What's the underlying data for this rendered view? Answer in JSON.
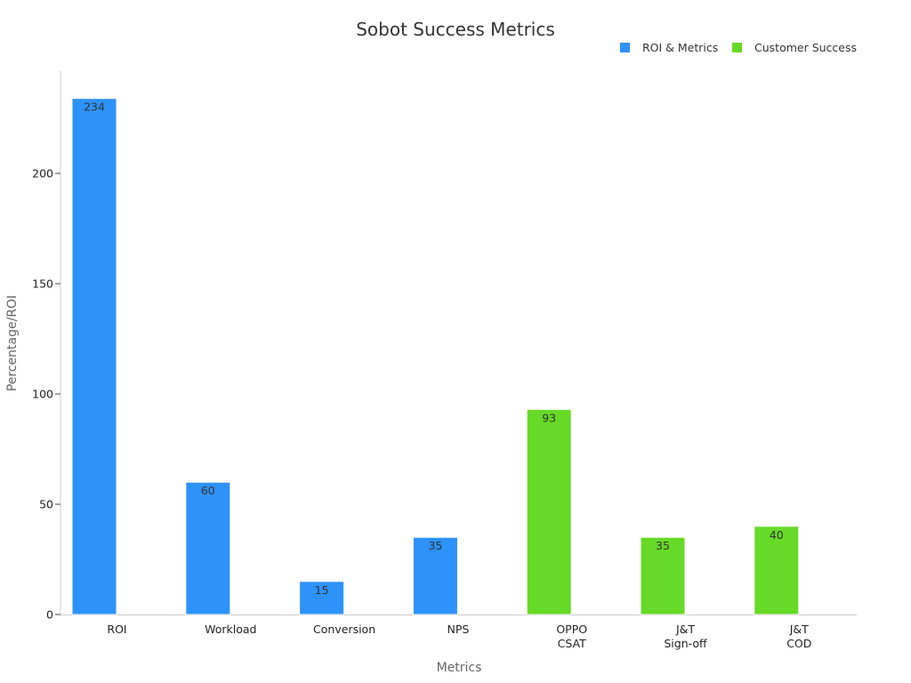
{
  "chart_data": {
    "type": "bar",
    "title": "Sobot Success Metrics",
    "xlabel": "Metrics",
    "ylabel": "Percentage/ROI",
    "ylim": [
      0,
      245
    ],
    "yticks": [
      0,
      50,
      100,
      150,
      200
    ],
    "categories": [
      [
        "ROI"
      ],
      [
        "Workload"
      ],
      [
        "Conversion"
      ],
      [
        "NPS"
      ],
      [
        "OPPO",
        "CSAT"
      ],
      [
        "J&T",
        "Sign-off"
      ],
      [
        "J&T",
        "COD"
      ]
    ],
    "legend_position": "top-right",
    "grid": false,
    "series": [
      {
        "name": "ROI & Metrics",
        "color": "#2d92fa",
        "values": [
          234,
          60,
          15,
          35,
          null,
          null,
          null
        ]
      },
      {
        "name": "Customer Success",
        "color": "#66da26",
        "values": [
          null,
          null,
          null,
          null,
          93,
          35,
          40
        ]
      }
    ]
  }
}
